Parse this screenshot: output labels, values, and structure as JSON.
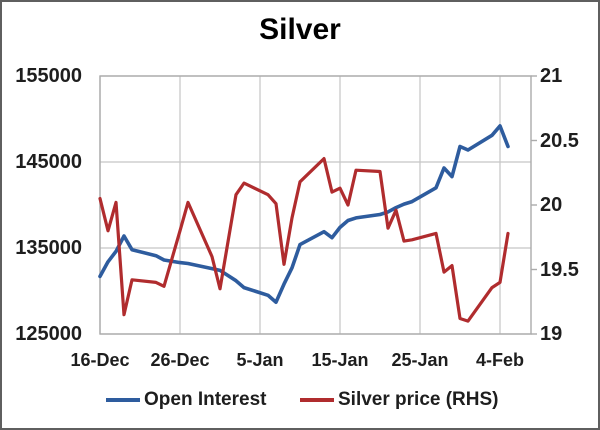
{
  "chart_data": {
    "type": "line",
    "title": "Silver",
    "grid": true,
    "legend_position": "bottom",
    "x_axis": {
      "tick_labels": [
        "16-Dec",
        "26-Dec",
        "5-Jan",
        "15-Jan",
        "25-Jan",
        "4-Feb"
      ],
      "tick_day_offsets": [
        0,
        10,
        20,
        30,
        40,
        50
      ]
    },
    "left_axis": {
      "min": 125000,
      "max": 155000,
      "tick_values": [
        125000,
        135000,
        145000,
        155000
      ],
      "tick_labels": [
        "125000",
        "135000",
        "145000",
        "155000"
      ]
    },
    "right_axis": {
      "min": 19,
      "max": 21,
      "tick_values": [
        19,
        19.5,
        20,
        20.5,
        21
      ],
      "tick_labels": [
        "19",
        "19.5",
        "20",
        "20.5",
        "21"
      ]
    },
    "dates": [
      "16-Dec",
      "17-Dec",
      "18-Dec",
      "19-Dec",
      "20-Dec",
      "23-Dec",
      "24-Dec",
      "26-Dec",
      "27-Dec",
      "30-Dec",
      "31-Dec",
      "2-Jan",
      "3-Jan",
      "6-Jan",
      "7-Jan",
      "8-Jan",
      "9-Jan",
      "10-Jan",
      "13-Jan",
      "14-Jan",
      "15-Jan",
      "16-Jan",
      "17-Jan",
      "20-Jan",
      "21-Jan",
      "22-Jan",
      "23-Jan",
      "24-Jan",
      "27-Jan",
      "28-Jan",
      "29-Jan",
      "30-Jan",
      "31-Jan",
      "3-Feb",
      "4-Feb",
      "5-Feb"
    ],
    "day_offsets": [
      0,
      1,
      2,
      3,
      4,
      7,
      8,
      10,
      11,
      14,
      15,
      17,
      18,
      21,
      22,
      23,
      24,
      25,
      28,
      29,
      30,
      31,
      32,
      35,
      36,
      37,
      38,
      39,
      42,
      43,
      44,
      45,
      46,
      49,
      50,
      51
    ],
    "series": [
      {
        "name": "Open Interest",
        "axis": "left",
        "color": "#2E5C9E",
        "values": [
          131700,
          133400,
          134600,
          136400,
          134800,
          134100,
          133600,
          133300,
          133200,
          132600,
          132400,
          131200,
          130400,
          129500,
          128700,
          130800,
          132700,
          135400,
          136900,
          136200,
          137400,
          138200,
          138500,
          138900,
          139200,
          139700,
          140100,
          140400,
          142000,
          144300,
          143300,
          146800,
          146400,
          148100,
          149200,
          146800
        ]
      },
      {
        "name": "Silver price (RHS)",
        "axis": "right",
        "color": "#B02C2E",
        "values": [
          20.05,
          19.8,
          20.02,
          19.15,
          19.42,
          19.4,
          19.37,
          19.8,
          20.02,
          19.6,
          19.35,
          20.08,
          20.17,
          20.08,
          20.01,
          19.54,
          19.9,
          20.18,
          20.36,
          20.1,
          20.13,
          20.0,
          20.27,
          20.26,
          19.82,
          19.96,
          19.72,
          19.73,
          19.78,
          19.48,
          19.53,
          19.12,
          19.1,
          19.36,
          19.4,
          19.78
        ]
      }
    ]
  },
  "colors": {
    "open_interest_line": "#2E5C9E",
    "silver_price_line": "#B02C2E",
    "gridline": "#C5C5C5",
    "plot_border": "#ABABAB",
    "axis_tick": "#ABABAB",
    "text": "#1E1E1E",
    "title_text": "#000000",
    "outer_border": "#5F5F5F",
    "background": "#FFFFFF"
  }
}
